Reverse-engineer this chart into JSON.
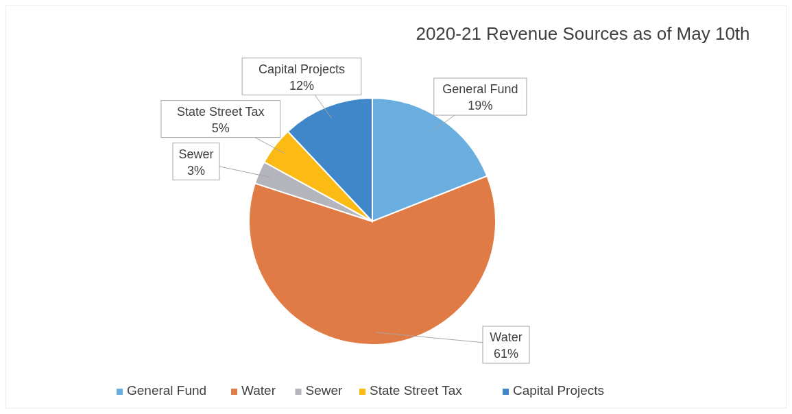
{
  "chart_data": {
    "type": "pie",
    "title": "2020-21 Revenue Sources as of May 10th",
    "categories": [
      "General Fund",
      "Water",
      "Sewer",
      "State Street Tax",
      "Capital Projects"
    ],
    "values": [
      19,
      61,
      3,
      5,
      12
    ],
    "colors": [
      "#6aaee0",
      "#e07b45",
      "#b4b4bc",
      "#fbbb14",
      "#3f87c9"
    ],
    "value_labels": [
      "19%",
      "61%",
      "3%",
      "5%",
      "12%"
    ],
    "legend": "bottom"
  }
}
